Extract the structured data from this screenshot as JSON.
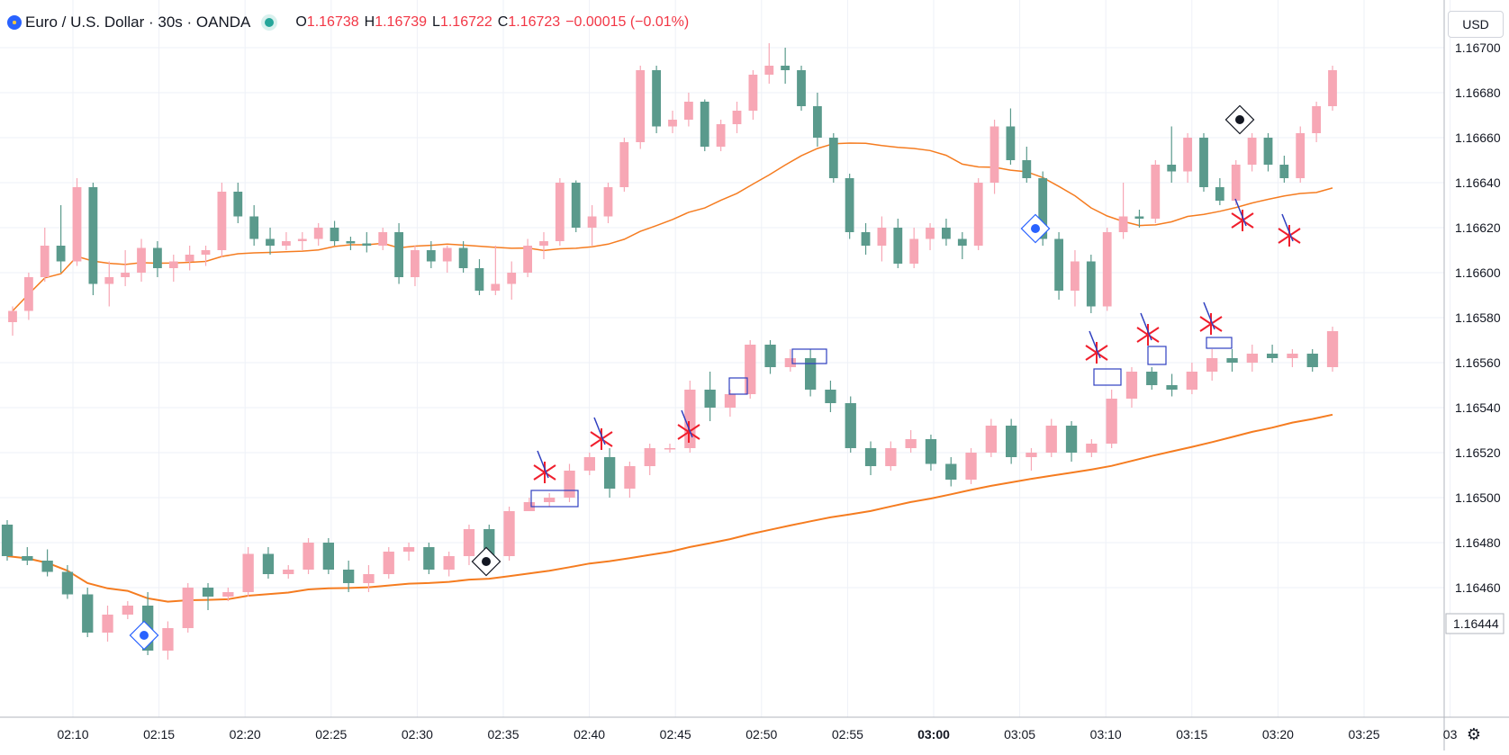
{
  "legend": {
    "symbol": "Euro / U.S. Dollar · 30s · OANDA",
    "o_label": "O",
    "o": "1.16738",
    "h_label": "H",
    "h": "1.16739",
    "l_label": "L",
    "l": "1.16722",
    "c_label": "C",
    "c": "1.16723",
    "change": "−0.00015 (−0.01%)"
  },
  "currency": "USD",
  "colors": {
    "up": "#f7a7b5",
    "down": "#5a9a8c",
    "ma": "#f57c20",
    "pattern_box": "#3040c0",
    "cross": "#f01e2c",
    "grid": "#eef1f7"
  },
  "chart_data": {
    "type": "candlestick",
    "y_range": [
      1.16425,
      1.1671
    ],
    "y_ticks": [
      "1.16700",
      "1.16680",
      "1.16660",
      "1.16640",
      "1.16620",
      "1.16600",
      "1.16580",
      "1.16560",
      "1.16540",
      "1.16520",
      "1.16500",
      "1.16480",
      "1.16460"
    ],
    "last_price_label": "1.16444",
    "x_ticks": [
      "02:10",
      "02:15",
      "02:20",
      "02:25",
      "02:30",
      "02:35",
      "02:40",
      "02:45",
      "02:50",
      "02:55",
      "03:00",
      "03:05",
      "03:10",
      "03:15",
      "03:20",
      "03:25",
      "03"
    ],
    "series": [
      {
        "name": "upper",
        "candles": [
          [
            1.16578,
            1.16585,
            1.16572,
            1.16583
          ],
          [
            1.16583,
            1.166,
            1.16579,
            1.16598
          ],
          [
            1.16598,
            1.1662,
            1.16596,
            1.16612
          ],
          [
            1.16612,
            1.1663,
            1.166,
            1.16605
          ],
          [
            1.16605,
            1.16642,
            1.16603,
            1.16638
          ],
          [
            1.16638,
            1.1664,
            1.1659,
            1.16595
          ],
          [
            1.16595,
            1.16605,
            1.16585,
            1.16598
          ],
          [
            1.16598,
            1.1661,
            1.16594,
            1.166
          ],
          [
            1.166,
            1.16615,
            1.16596,
            1.16611
          ],
          [
            1.16611,
            1.16614,
            1.16598,
            1.16602
          ],
          [
            1.16602,
            1.16608,
            1.16596,
            1.16605
          ],
          [
            1.16605,
            1.16612,
            1.16601,
            1.16608
          ],
          [
            1.16608,
            1.16612,
            1.16603,
            1.1661
          ],
          [
            1.1661,
            1.1664,
            1.16607,
            1.16636
          ],
          [
            1.16636,
            1.1664,
            1.16622,
            1.16625
          ],
          [
            1.16625,
            1.1663,
            1.16612,
            1.16615
          ],
          [
            1.16615,
            1.1662,
            1.16608,
            1.16612
          ],
          [
            1.16612,
            1.16618,
            1.1661,
            1.16614
          ],
          [
            1.16614,
            1.16618,
            1.1661,
            1.16615
          ],
          [
            1.16615,
            1.16622,
            1.16612,
            1.1662
          ],
          [
            1.1662,
            1.16623,
            1.16612,
            1.16614
          ],
          [
            1.16614,
            1.16616,
            1.1661,
            1.16613
          ],
          [
            1.16613,
            1.16618,
            1.16609,
            1.16612
          ],
          [
            1.16612,
            1.1662,
            1.1661,
            1.16618
          ],
          [
            1.16618,
            1.16622,
            1.16595,
            1.16598
          ],
          [
            1.16598,
            1.16612,
            1.16594,
            1.1661
          ],
          [
            1.1661,
            1.16614,
            1.16602,
            1.16605
          ],
          [
            1.16605,
            1.16612,
            1.166,
            1.16611
          ],
          [
            1.16611,
            1.16614,
            1.166,
            1.16602
          ],
          [
            1.16602,
            1.16606,
            1.1659,
            1.16592
          ],
          [
            1.16592,
            1.16612,
            1.1659,
            1.16595
          ],
          [
            1.16595,
            1.16605,
            1.16588,
            1.166
          ],
          [
            1.166,
            1.16615,
            1.16598,
            1.16612
          ],
          [
            1.16612,
            1.16618,
            1.16606,
            1.16614
          ],
          [
            1.16614,
            1.16642,
            1.16612,
            1.1664
          ],
          [
            1.1664,
            1.16641,
            1.16618,
            1.1662
          ],
          [
            1.1662,
            1.1663,
            1.16612,
            1.16625
          ],
          [
            1.16625,
            1.1664,
            1.16622,
            1.16638
          ],
          [
            1.16638,
            1.1666,
            1.16636,
            1.16658
          ],
          [
            1.16658,
            1.16692,
            1.16655,
            1.1669
          ],
          [
            1.1669,
            1.16692,
            1.16662,
            1.16665
          ],
          [
            1.16665,
            1.16672,
            1.16662,
            1.16668
          ],
          [
            1.16668,
            1.1668,
            1.16665,
            1.16676
          ],
          [
            1.16676,
            1.16677,
            1.16654,
            1.16656
          ],
          [
            1.16656,
            1.16668,
            1.16654,
            1.16666
          ],
          [
            1.16666,
            1.16676,
            1.16662,
            1.16672
          ],
          [
            1.16672,
            1.1669,
            1.16668,
            1.16688
          ],
          [
            1.16688,
            1.16702,
            1.16684,
            1.16692
          ],
          [
            1.16692,
            1.167,
            1.16684,
            1.1669
          ],
          [
            1.1669,
            1.16692,
            1.16672,
            1.16674
          ],
          [
            1.16674,
            1.1668,
            1.16656,
            1.1666
          ],
          [
            1.1666,
            1.16662,
            1.1664,
            1.16642
          ],
          [
            1.16642,
            1.16644,
            1.16615,
            1.16618
          ],
          [
            1.16618,
            1.16622,
            1.16608,
            1.16612
          ],
          [
            1.16612,
            1.16625,
            1.16605,
            1.1662
          ],
          [
            1.1662,
            1.16624,
            1.16602,
            1.16604
          ],
          [
            1.16604,
            1.1662,
            1.16602,
            1.16615
          ],
          [
            1.16615,
            1.16622,
            1.1661,
            1.1662
          ],
          [
            1.1662,
            1.16624,
            1.16612,
            1.16615
          ],
          [
            1.16615,
            1.16618,
            1.16606,
            1.16612
          ],
          [
            1.16612,
            1.16642,
            1.1661,
            1.1664
          ],
          [
            1.1664,
            1.16668,
            1.16635,
            1.16665
          ],
          [
            1.16665,
            1.16673,
            1.16648,
            1.1665
          ],
          [
            1.1665,
            1.16656,
            1.1664,
            1.16642
          ],
          [
            1.16642,
            1.16645,
            1.16612,
            1.16615
          ],
          [
            1.16615,
            1.16618,
            1.16588,
            1.16592
          ],
          [
            1.16592,
            1.1661,
            1.16585,
            1.16605
          ],
          [
            1.16605,
            1.16608,
            1.16582,
            1.16585
          ],
          [
            1.16585,
            1.1662,
            1.16583,
            1.16618
          ],
          [
            1.16618,
            1.1664,
            1.16615,
            1.16625
          ],
          [
            1.16625,
            1.16628,
            1.1662,
            1.16624
          ],
          [
            1.16624,
            1.1665,
            1.16622,
            1.16648
          ],
          [
            1.16648,
            1.16665,
            1.1664,
            1.16645
          ],
          [
            1.16645,
            1.16662,
            1.1664,
            1.1666
          ],
          [
            1.1666,
            1.16662,
            1.16636,
            1.16638
          ],
          [
            1.16638,
            1.16642,
            1.1663,
            1.16632
          ],
          [
            1.16632,
            1.1665,
            1.1663,
            1.16648
          ],
          [
            1.16648,
            1.16662,
            1.16645,
            1.1666
          ],
          [
            1.1666,
            1.16662,
            1.16645,
            1.16648
          ],
          [
            1.16648,
            1.16652,
            1.1664,
            1.16642
          ],
          [
            1.16642,
            1.16665,
            1.1664,
            1.16662
          ],
          [
            1.16662,
            1.16676,
            1.16658,
            1.16674
          ],
          [
            1.16674,
            1.16692,
            1.16672,
            1.1669
          ]
        ]
      },
      {
        "name": "lower",
        "candles": [
          [
            1.16488,
            1.1649,
            1.16472,
            1.16474
          ],
          [
            1.16474,
            1.16478,
            1.1647,
            1.16472
          ],
          [
            1.16472,
            1.16477,
            1.16465,
            1.16467
          ],
          [
            1.16467,
            1.1647,
            1.16455,
            1.16457
          ],
          [
            1.16457,
            1.1646,
            1.16438,
            1.1644
          ],
          [
            1.1644,
            1.16452,
            1.16436,
            1.16448
          ],
          [
            1.16448,
            1.16454,
            1.16446,
            1.16452
          ],
          [
            1.16452,
            1.16458,
            1.1643,
            1.16432
          ],
          [
            1.16432,
            1.16445,
            1.16428,
            1.16442
          ],
          [
            1.16442,
            1.16462,
            1.1644,
            1.1646
          ],
          [
            1.1646,
            1.16462,
            1.1645,
            1.16456
          ],
          [
            1.16456,
            1.1646,
            1.16454,
            1.16458
          ],
          [
            1.16458,
            1.16478,
            1.16456,
            1.16475
          ],
          [
            1.16475,
            1.16478,
            1.16464,
            1.16466
          ],
          [
            1.16466,
            1.1647,
            1.16464,
            1.16468
          ],
          [
            1.16468,
            1.16482,
            1.16466,
            1.1648
          ],
          [
            1.1648,
            1.16482,
            1.16466,
            1.16468
          ],
          [
            1.16468,
            1.16472,
            1.16458,
            1.16462
          ],
          [
            1.16462,
            1.1647,
            1.16458,
            1.16466
          ],
          [
            1.16466,
            1.16478,
            1.16464,
            1.16476
          ],
          [
            1.16476,
            1.1648,
            1.16472,
            1.16478
          ],
          [
            1.16478,
            1.1648,
            1.16466,
            1.16468
          ],
          [
            1.16468,
            1.16476,
            1.16465,
            1.16474
          ],
          [
            1.16474,
            1.16488,
            1.1647,
            1.16486
          ],
          [
            1.16486,
            1.16488,
            1.1647,
            1.16474
          ],
          [
            1.16474,
            1.16496,
            1.16472,
            1.16494
          ],
          [
            1.16494,
            1.165,
            1.16494,
            1.16498
          ],
          [
            1.16498,
            1.16502,
            1.16496,
            1.165
          ],
          [
            1.165,
            1.16515,
            1.16498,
            1.16512
          ],
          [
            1.16512,
            1.1652,
            1.1651,
            1.16518
          ],
          [
            1.16518,
            1.16522,
            1.165,
            1.16504
          ],
          [
            1.16504,
            1.16516,
            1.165,
            1.16514
          ],
          [
            1.16514,
            1.16524,
            1.1651,
            1.16522
          ],
          [
            1.16522,
            1.16524,
            1.1652,
            1.16522
          ],
          [
            1.16522,
            1.16552,
            1.1652,
            1.16548
          ],
          [
            1.16548,
            1.16556,
            1.16534,
            1.1654
          ],
          [
            1.1654,
            1.16548,
            1.16536,
            1.16546
          ],
          [
            1.16546,
            1.1657,
            1.16544,
            1.16568
          ],
          [
            1.16568,
            1.1657,
            1.16555,
            1.16558
          ],
          [
            1.16558,
            1.16566,
            1.16556,
            1.16562
          ],
          [
            1.16562,
            1.16566,
            1.16545,
            1.16548
          ],
          [
            1.16548,
            1.16552,
            1.16538,
            1.16542
          ],
          [
            1.16542,
            1.16545,
            1.1652,
            1.16522
          ],
          [
            1.16522,
            1.16525,
            1.1651,
            1.16514
          ],
          [
            1.16514,
            1.16525,
            1.16512,
            1.16522
          ],
          [
            1.16522,
            1.1653,
            1.1652,
            1.16526
          ],
          [
            1.16526,
            1.16528,
            1.16512,
            1.16515
          ],
          [
            1.16515,
            1.16518,
            1.16505,
            1.16508
          ],
          [
            1.16508,
            1.16522,
            1.16506,
            1.1652
          ],
          [
            1.1652,
            1.16535,
            1.16518,
            1.16532
          ],
          [
            1.16532,
            1.16535,
            1.16515,
            1.16518
          ],
          [
            1.16518,
            1.16522,
            1.16512,
            1.1652
          ],
          [
            1.1652,
            1.16535,
            1.16518,
            1.16532
          ],
          [
            1.16532,
            1.16534,
            1.16516,
            1.1652
          ],
          [
            1.1652,
            1.16526,
            1.16518,
            1.16524
          ],
          [
            1.16524,
            1.16548,
            1.16522,
            1.16544
          ],
          [
            1.16544,
            1.16558,
            1.1654,
            1.16556
          ],
          [
            1.16556,
            1.16558,
            1.16548,
            1.1655
          ],
          [
            1.1655,
            1.16555,
            1.16545,
            1.16548
          ],
          [
            1.16548,
            1.1656,
            1.16546,
            1.16556
          ],
          [
            1.16556,
            1.16566,
            1.16552,
            1.16562
          ],
          [
            1.16562,
            1.16566,
            1.16556,
            1.1656
          ],
          [
            1.1656,
            1.16568,
            1.16556,
            1.16564
          ],
          [
            1.16564,
            1.16568,
            1.1656,
            1.16562
          ],
          [
            1.16562,
            1.16566,
            1.16558,
            1.16564
          ],
          [
            1.16564,
            1.16566,
            1.16556,
            1.16558
          ],
          [
            1.16558,
            1.16576,
            1.16556,
            1.16574
          ]
        ]
      }
    ]
  }
}
